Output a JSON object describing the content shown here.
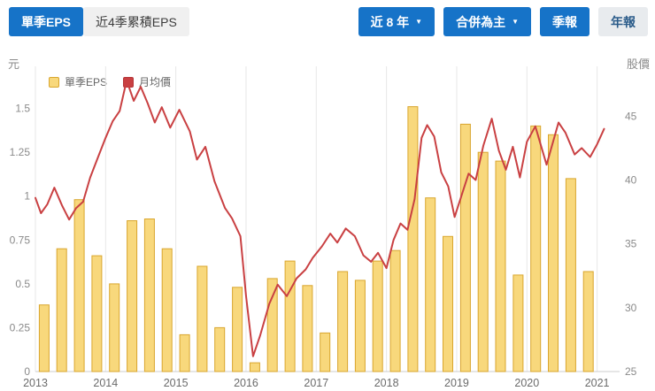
{
  "colors": {
    "accent_blue": "#1673c8",
    "bar_fill": "#f8d87c",
    "bar_border": "#d9a62e",
    "line_red": "#c94042",
    "inactive_button_bg": "#f0f0f0",
    "annual_button_text": "#2b5c8a"
  },
  "header": {
    "tabs": [
      {
        "label": "單季EPS",
        "active": true
      },
      {
        "label": "近4季累積EPS",
        "active": false
      }
    ],
    "controls": {
      "range_dropdown": "近 8 年",
      "consolidation_dropdown": "合併為主",
      "quarterly_button": "季報",
      "annual_button": "年報"
    }
  },
  "chart_data": {
    "type": "bar",
    "overlay_type": "line",
    "title": "",
    "legend": [
      {
        "label": "單季EPS",
        "kind": "bar",
        "fill": "#f8d87c",
        "stroke": "#d9a62e"
      },
      {
        "label": "月均價",
        "kind": "line",
        "fill": "#c94042"
      }
    ],
    "left_axis": {
      "title": "元",
      "ticks": [
        "0",
        "0.25",
        "0.5",
        "0.75",
        "1",
        "1.25",
        "1.5"
      ],
      "tick_values": [
        0,
        0.25,
        0.5,
        0.75,
        1,
        1.25,
        1.5
      ],
      "range": [
        0,
        1.74
      ]
    },
    "right_axis": {
      "title": "股價",
      "ticks": [
        "25",
        "30",
        "35",
        "40",
        "45"
      ],
      "tick_values": [
        25,
        30,
        35,
        40,
        45
      ],
      "range": [
        25,
        48.9
      ]
    },
    "x_axis": {
      "years": [
        2013,
        2014,
        2015,
        2016,
        2017,
        2018,
        2019,
        2020,
        2021
      ]
    },
    "bars": {
      "name": "單季EPS",
      "unit": "元",
      "quarters": [
        "2013Q1",
        "2013Q2",
        "2013Q3",
        "2013Q4",
        "2014Q1",
        "2014Q2",
        "2014Q3",
        "2014Q4",
        "2015Q1",
        "2015Q2",
        "2015Q3",
        "2015Q4",
        "2016Q1",
        "2016Q2",
        "2016Q3",
        "2016Q4",
        "2017Q1",
        "2017Q2",
        "2017Q3",
        "2017Q4",
        "2018Q1",
        "2018Q2",
        "2018Q3",
        "2018Q4",
        "2019Q1",
        "2019Q2",
        "2019Q3",
        "2019Q4",
        "2020Q1",
        "2020Q2",
        "2020Q3",
        "2020Q4"
      ],
      "values": [
        0.38,
        0.7,
        0.98,
        0.66,
        0.5,
        0.86,
        0.87,
        0.7,
        0.21,
        0.6,
        0.25,
        0.48,
        0.05,
        0.53,
        0.63,
        0.49,
        0.22,
        0.57,
        0.52,
        0.63,
        0.69,
        1.51,
        0.99,
        0.77,
        1.41,
        1.25,
        1.2,
        0.55,
        1.4,
        1.35,
        1.1,
        0.57
      ]
    },
    "line": {
      "name": "月均價",
      "axis": "right",
      "points": [
        [
          2013.0,
          38.6
        ],
        [
          2013.08,
          37.4
        ],
        [
          2013.17,
          38.1
        ],
        [
          2013.27,
          39.4
        ],
        [
          2013.38,
          38.0
        ],
        [
          2013.48,
          36.9
        ],
        [
          2013.58,
          37.8
        ],
        [
          2013.68,
          38.3
        ],
        [
          2013.78,
          40.2
        ],
        [
          2013.9,
          41.9
        ],
        [
          2014.0,
          43.3
        ],
        [
          2014.1,
          44.6
        ],
        [
          2014.2,
          45.4
        ],
        [
          2014.3,
          47.8
        ],
        [
          2014.4,
          46.2
        ],
        [
          2014.5,
          47.3
        ],
        [
          2014.6,
          46.0
        ],
        [
          2014.7,
          44.5
        ],
        [
          2014.8,
          45.7
        ],
        [
          2014.92,
          44.1
        ],
        [
          2015.05,
          45.5
        ],
        [
          2015.2,
          43.8
        ],
        [
          2015.3,
          41.6
        ],
        [
          2015.42,
          42.6
        ],
        [
          2015.55,
          39.9
        ],
        [
          2015.7,
          37.8
        ],
        [
          2015.8,
          37.0
        ],
        [
          2015.92,
          35.6
        ],
        [
          2016.0,
          30.9
        ],
        [
          2016.1,
          26.2
        ],
        [
          2016.2,
          27.8
        ],
        [
          2016.33,
          30.3
        ],
        [
          2016.45,
          31.8
        ],
        [
          2016.58,
          30.9
        ],
        [
          2016.72,
          32.3
        ],
        [
          2016.85,
          33.0
        ],
        [
          2016.95,
          33.9
        ],
        [
          2017.08,
          34.8
        ],
        [
          2017.2,
          35.8
        ],
        [
          2017.3,
          35.1
        ],
        [
          2017.42,
          36.2
        ],
        [
          2017.55,
          35.6
        ],
        [
          2017.67,
          34.1
        ],
        [
          2017.78,
          33.6
        ],
        [
          2017.88,
          34.3
        ],
        [
          2018.0,
          33.1
        ],
        [
          2018.1,
          35.3
        ],
        [
          2018.2,
          36.6
        ],
        [
          2018.3,
          36.1
        ],
        [
          2018.4,
          38.5
        ],
        [
          2018.5,
          43.3
        ],
        [
          2018.58,
          44.3
        ],
        [
          2018.68,
          43.4
        ],
        [
          2018.78,
          40.6
        ],
        [
          2018.88,
          39.5
        ],
        [
          2018.97,
          37.1
        ],
        [
          2019.07,
          38.8
        ],
        [
          2019.17,
          40.5
        ],
        [
          2019.27,
          40.0
        ],
        [
          2019.38,
          42.7
        ],
        [
          2019.5,
          44.8
        ],
        [
          2019.6,
          42.3
        ],
        [
          2019.7,
          40.8
        ],
        [
          2019.8,
          42.6
        ],
        [
          2019.9,
          40.2
        ],
        [
          2020.0,
          43.0
        ],
        [
          2020.12,
          44.2
        ],
        [
          2020.28,
          41.2
        ],
        [
          2020.45,
          44.5
        ],
        [
          2020.55,
          43.7
        ],
        [
          2020.68,
          42.0
        ],
        [
          2020.78,
          42.5
        ],
        [
          2020.9,
          41.8
        ],
        [
          2021.0,
          42.8
        ],
        [
          2021.1,
          44.0
        ]
      ]
    }
  }
}
